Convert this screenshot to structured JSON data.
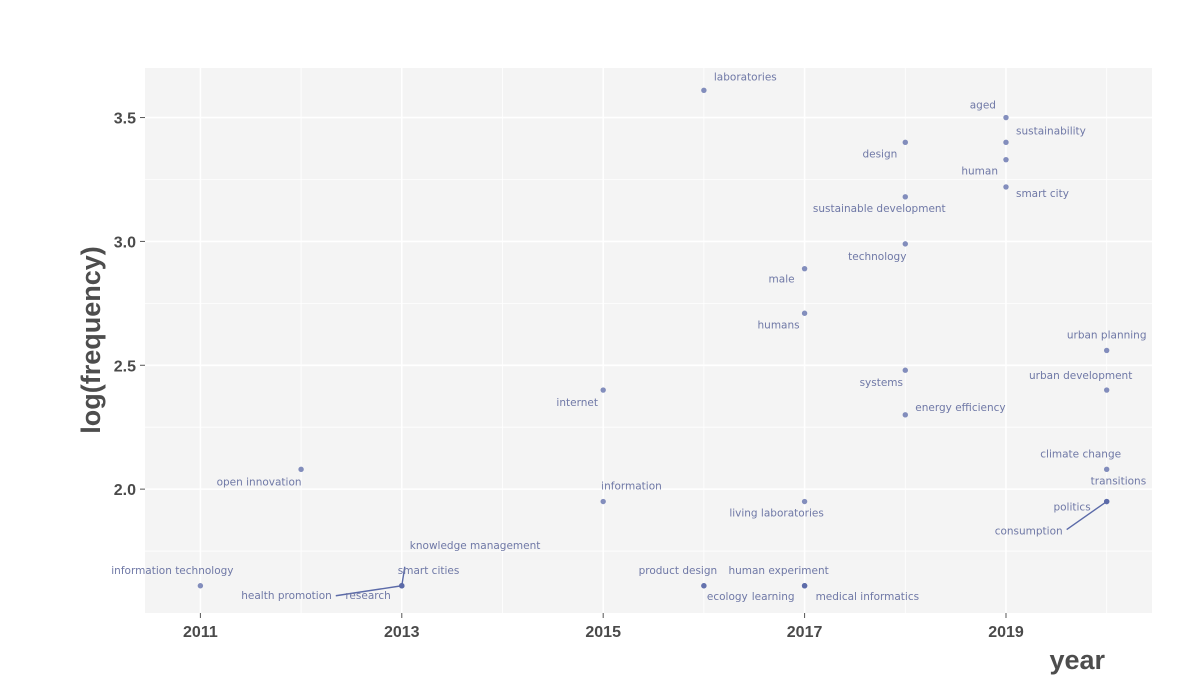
{
  "chart_data": {
    "type": "scatter",
    "title": "",
    "xlabel": "year",
    "ylabel": "log(frequency)",
    "xlim": [
      2010.45,
      2020.45
    ],
    "ylim": [
      1.5,
      3.7
    ],
    "xticks": [
      2011,
      2013,
      2015,
      2017,
      2019
    ],
    "xtick_labels": [
      "2011",
      "2013",
      "2015",
      "2017",
      "2019"
    ],
    "yticks": [
      2.0,
      2.5,
      3.0,
      3.5
    ],
    "ytick_labels": [
      "2.0",
      "2.5",
      "3.0",
      "3.5"
    ],
    "grid": true,
    "legend": "none",
    "point_color": "#5b6aa8",
    "panel_color": "#f4f4f4",
    "points": [
      {
        "label": "laboratories",
        "x": 2016,
        "y": 3.61
      },
      {
        "label": "aged",
        "x": 2019,
        "y": 3.5
      },
      {
        "label": "sustainability",
        "x": 2019,
        "y": 3.4
      },
      {
        "label": "design",
        "x": 2018,
        "y": 3.4
      },
      {
        "label": "human",
        "x": 2019,
        "y": 3.33
      },
      {
        "label": "smart city",
        "x": 2019,
        "y": 3.22
      },
      {
        "label": "sustainable development",
        "x": 2018,
        "y": 3.18
      },
      {
        "label": "technology",
        "x": 2018,
        "y": 2.99
      },
      {
        "label": "male",
        "x": 2017,
        "y": 2.89
      },
      {
        "label": "humans",
        "x": 2017,
        "y": 2.71
      },
      {
        "label": "urban planning",
        "x": 2020,
        "y": 2.56
      },
      {
        "label": "systems",
        "x": 2018,
        "y": 2.48
      },
      {
        "label": "urban development",
        "x": 2020,
        "y": 2.4
      },
      {
        "label": "internet",
        "x": 2015,
        "y": 2.4
      },
      {
        "label": "energy efficiency",
        "x": 2018,
        "y": 2.3
      },
      {
        "label": "climate change",
        "x": 2020,
        "y": 2.08
      },
      {
        "label": "open innovation",
        "x": 2012,
        "y": 2.08
      },
      {
        "label": "transitions",
        "x": 2020,
        "y": 1.95
      },
      {
        "label": "information",
        "x": 2015,
        "y": 1.95
      },
      {
        "label": "living laboratories",
        "x": 2017,
        "y": 1.95
      },
      {
        "label": "politics",
        "x": 2020,
        "y": 1.95
      },
      {
        "label": "consumption",
        "x": 2020,
        "y": 1.95
      },
      {
        "label": "knowledge management",
        "x": 2013,
        "y": 1.61
      },
      {
        "label": "smart cities",
        "x": 2013,
        "y": 1.61
      },
      {
        "label": "health promotion",
        "x": 2013,
        "y": 1.61
      },
      {
        "label": "research",
        "x": 2013,
        "y": 1.61
      },
      {
        "label": "information technology",
        "x": 2011,
        "y": 1.61
      },
      {
        "label": "product design",
        "x": 2016,
        "y": 1.61
      },
      {
        "label": "ecology",
        "x": 2016,
        "y": 1.61
      },
      {
        "label": "human experiment",
        "x": 2017,
        "y": 1.61
      },
      {
        "label": "learning",
        "x": 2017,
        "y": 1.61
      },
      {
        "label": "medical informatics",
        "x": 2017,
        "y": 1.61
      }
    ]
  }
}
